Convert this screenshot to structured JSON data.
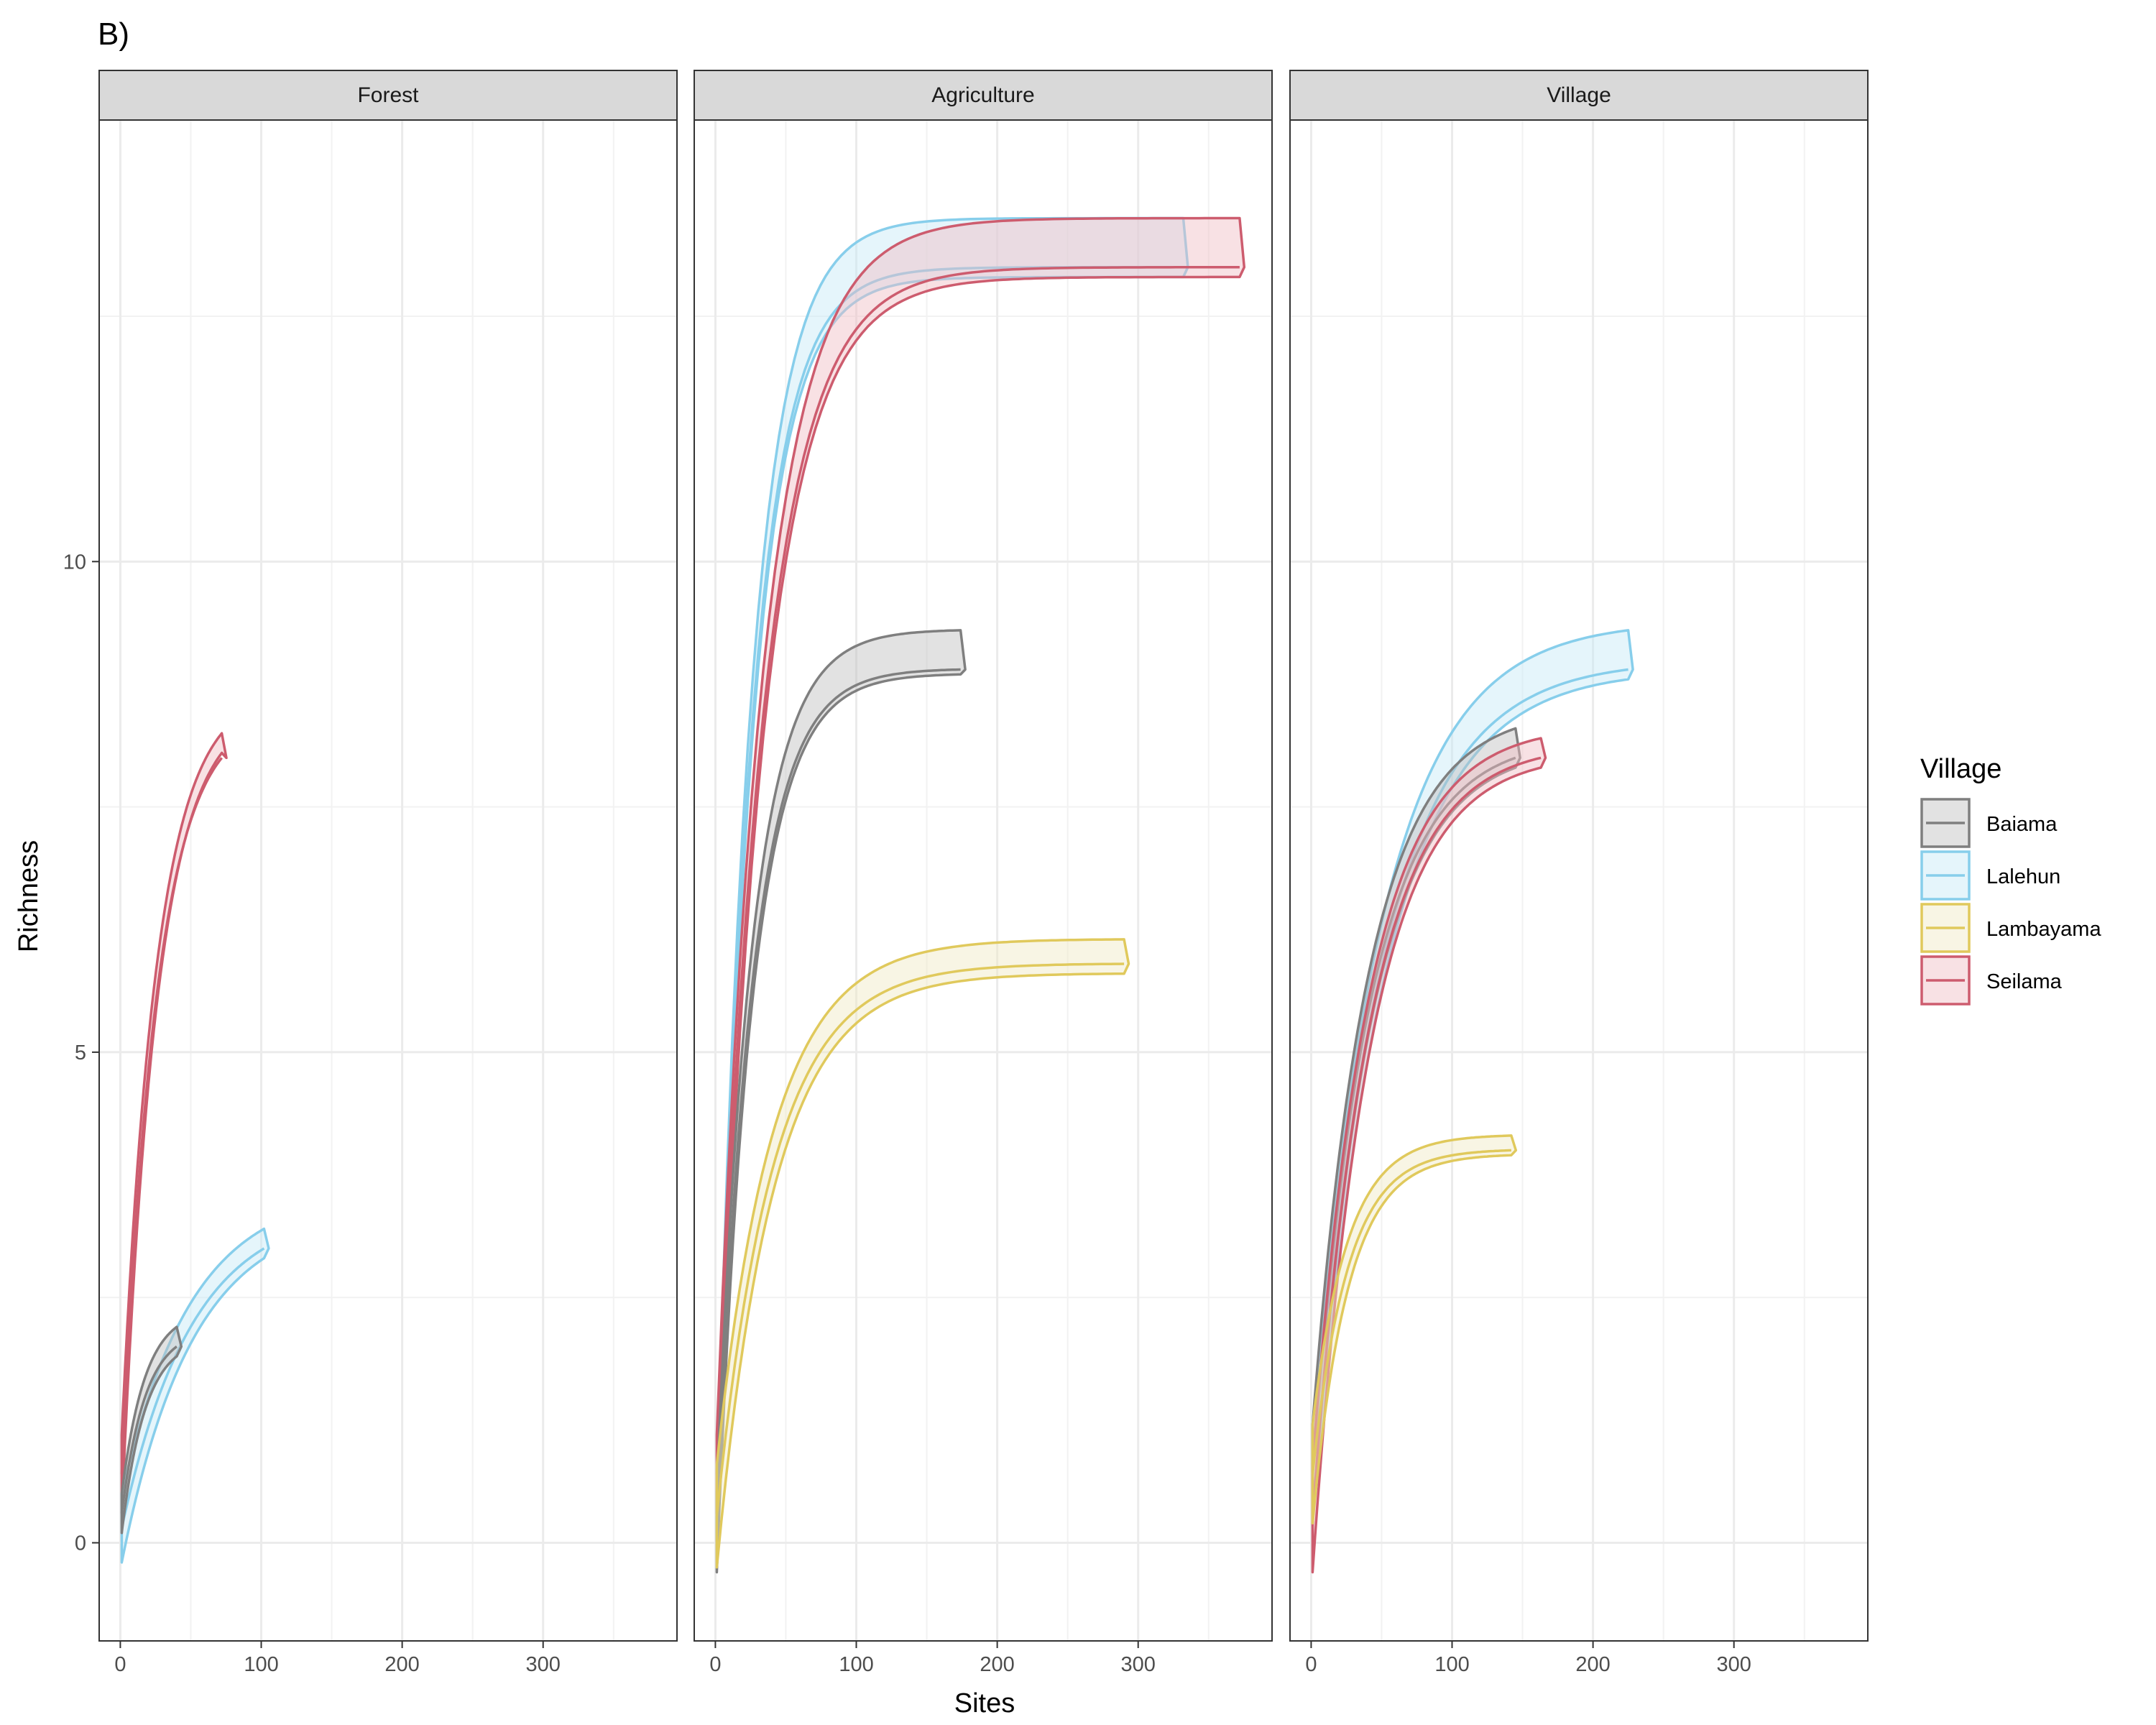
{
  "chart_data": {
    "type": "area",
    "tag": "B)",
    "xlabel": "Sites",
    "ylabel": "Richness",
    "xlim": [
      -15,
      395
    ],
    "ylim": [
      -1,
      14.5
    ],
    "x_ticks": [
      0,
      100,
      200,
      300
    ],
    "y_ticks": [
      0,
      5,
      10
    ],
    "grid": true,
    "legend": {
      "title": "Village",
      "position": "right",
      "entries": [
        "Baiama",
        "Lalehun",
        "Lambayama",
        "Seilama"
      ]
    },
    "colors": {
      "Baiama": "#7f7f7f",
      "Lalehun": "#87ceeb",
      "Lambayama": "#e0c95c",
      "Seilama": "#cd5c6e"
    },
    "fills": {
      "Baiama": "#bebebe",
      "Lalehun": "#c6e9f7",
      "Lambayama": "#f0e9c4",
      "Seilama": "#f0bcc4"
    },
    "panels": [
      {
        "strip": "Forest",
        "series": [
          {
            "name": "Seilama",
            "x_max": 72,
            "start": [
              1,
              0.3,
              1.1
            ],
            "end": [
              8,
              8.05,
              8.25
            ],
            "k": 0.04
          },
          {
            "name": "Lalehun",
            "x_max": 102,
            "start": [
              1,
              -0.2,
              0.5
            ],
            "end": [
              3,
              2.9,
              3.2
            ],
            "k": 0.02
          },
          {
            "name": "Baiama",
            "x_max": 40,
            "start": [
              1,
              0.1,
              0.5
            ],
            "end": [
              2,
              1.9,
              2.2
            ],
            "k": 0.06
          }
        ]
      },
      {
        "strip": "Agriculture",
        "series": [
          {
            "name": "Lalehun",
            "x_max": 332,
            "start": [
              1,
              0.0,
              0.5
            ],
            "end": [
              13.0,
              12.9,
              13.5
            ],
            "k": 0.04
          },
          {
            "name": "Seilama",
            "x_max": 372,
            "start": [
              1,
              0.3,
              1.1
            ],
            "end": [
              13.0,
              12.9,
              13.5
            ],
            "k": 0.03
          },
          {
            "name": "Baiama",
            "x_max": 174,
            "start": [
              1,
              -0.3,
              0.5
            ],
            "end": [
              8.9,
              8.85,
              9.3
            ],
            "k": 0.04
          },
          {
            "name": "Lambayama",
            "x_max": 290,
            "start": [
              1,
              -0.25,
              0.8
            ],
            "end": [
              5.9,
              5.8,
              6.15
            ],
            "k": 0.025
          }
        ]
      },
      {
        "strip": "Village",
        "series": [
          {
            "name": "Lalehun",
            "x_max": 225,
            "start": [
              1,
              0.2,
              1.2
            ],
            "end": [
              8.9,
              8.8,
              9.3
            ],
            "k": 0.02
          },
          {
            "name": "Baiama",
            "x_max": 145,
            "start": [
              1,
              0.2,
              1.2
            ],
            "end": [
              8.0,
              7.9,
              8.3
            ],
            "k": 0.025
          },
          {
            "name": "Seilama",
            "x_max": 163,
            "start": [
              1,
              -0.3,
              0.8
            ],
            "end": [
              8.0,
              7.9,
              8.2
            ],
            "k": 0.025
          },
          {
            "name": "Lambayama",
            "x_max": 142,
            "start": [
              1,
              0.2,
              1.2
            ],
            "end": [
              4.0,
              3.95,
              4.15
            ],
            "k": 0.04
          }
        ]
      }
    ]
  }
}
